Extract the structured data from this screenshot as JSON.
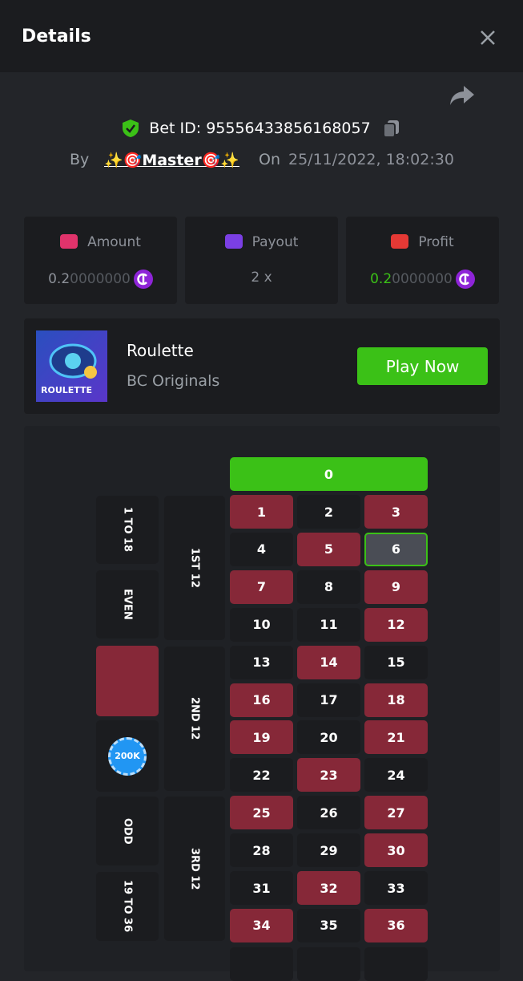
{
  "header": {
    "title": "Details"
  },
  "bet": {
    "label": "Bet ID:",
    "id": "95556433856168057",
    "by": "By",
    "user": "✨🎯Master🎯✨",
    "on": "On",
    "date": "25/11/2022, 18:02:30"
  },
  "stats": [
    {
      "label": "Amount",
      "main": "0.2",
      "rest": "0000000"
    },
    {
      "label": "Payout",
      "main": "2 x"
    },
    {
      "label": "Profit",
      "main": "0.2",
      "rest": "0000000"
    }
  ],
  "game": {
    "thumb": "ROULETTE",
    "name": "Roulette",
    "provider": "BC Originals",
    "button": "Play Now"
  },
  "table": {
    "zero": "0",
    "cells": [
      {
        "n": 1,
        "color": "red"
      },
      {
        "n": 2,
        "color": "black"
      },
      {
        "n": 3,
        "color": "red"
      },
      {
        "n": 4,
        "color": "black"
      },
      {
        "n": 5,
        "color": "red"
      },
      {
        "n": 6,
        "color": "black",
        "selected": true
      },
      {
        "n": 7,
        "color": "red"
      },
      {
        "n": 8,
        "color": "black"
      },
      {
        "n": 9,
        "color": "red"
      },
      {
        "n": 10,
        "color": "black"
      },
      {
        "n": 11,
        "color": "black"
      },
      {
        "n": 12,
        "color": "red"
      },
      {
        "n": 13,
        "color": "black"
      },
      {
        "n": 14,
        "color": "red"
      },
      {
        "n": 15,
        "color": "black"
      },
      {
        "n": 16,
        "color": "red"
      },
      {
        "n": 17,
        "color": "black"
      },
      {
        "n": 18,
        "color": "red"
      },
      {
        "n": 19,
        "color": "red"
      },
      {
        "n": 20,
        "color": "black"
      },
      {
        "n": 21,
        "color": "red"
      },
      {
        "n": 22,
        "color": "black"
      },
      {
        "n": 23,
        "color": "red"
      },
      {
        "n": 24,
        "color": "black"
      },
      {
        "n": 25,
        "color": "red"
      },
      {
        "n": 26,
        "color": "black"
      },
      {
        "n": 27,
        "color": "red"
      },
      {
        "n": 28,
        "color": "black"
      },
      {
        "n": 29,
        "color": "black"
      },
      {
        "n": 30,
        "color": "red"
      },
      {
        "n": 31,
        "color": "black"
      },
      {
        "n": 32,
        "color": "red"
      },
      {
        "n": 33,
        "color": "black"
      },
      {
        "n": 34,
        "color": "red"
      },
      {
        "n": 35,
        "color": "black"
      },
      {
        "n": 36,
        "color": "red"
      }
    ],
    "outside": [
      "1 TO 18",
      "EVEN",
      "",
      "",
      "ODD",
      "19 TO 36"
    ],
    "chip": "200K",
    "dozens": [
      "1ST 12",
      "2ND 12",
      "3RD 12"
    ]
  }
}
